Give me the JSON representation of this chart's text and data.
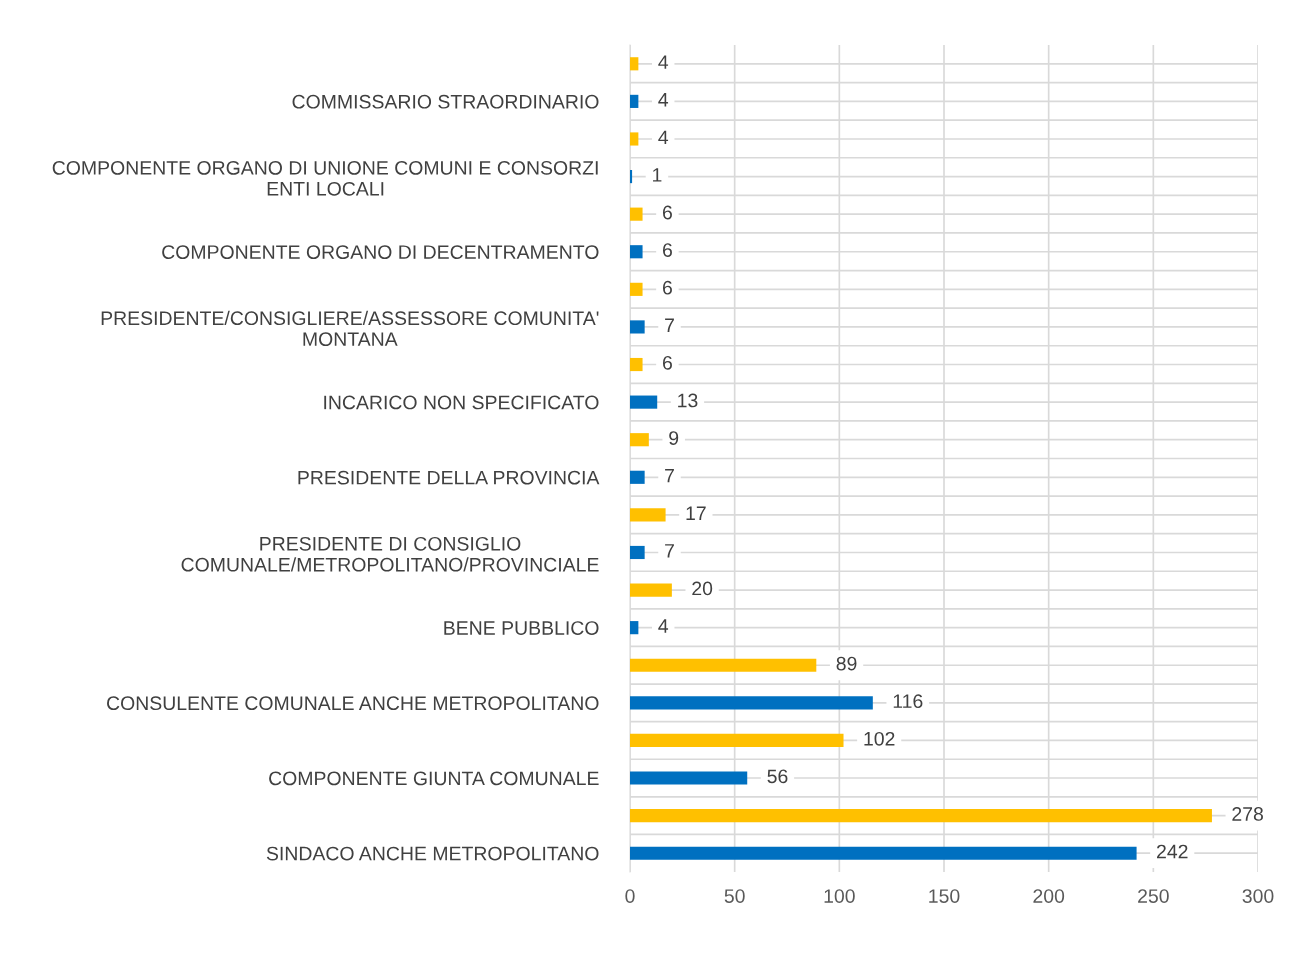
{
  "chart_data": {
    "type": "bar",
    "orientation": "horizontal",
    "categories": [
      null,
      "COMMISSARIO STRAORDINARIO",
      null,
      "COMPONENTE ORGANO DI UNIONE COMUNI E CONSORZI\nENTI LOCALI",
      null,
      "COMPONENTE ORGANO DI DECENTRAMENTO",
      null,
      "PRESIDENTE/CONSIGLIERE/ASSESSORE COMUNITA'\nMONTANA",
      null,
      "INCARICO NON SPECIFICATO",
      null,
      "PRESIDENTE DELLA PROVINCIA",
      null,
      "PRESIDENTE DI CONSIGLIO\nCOMUNALE/METROPOLITANO/PROVINCIALE",
      null,
      "BENE PUBBLICO",
      null,
      "CONSULENTE COMUNALE ANCHE METROPOLITANO",
      null,
      "COMPONENTE GIUNTA COMUNALE",
      null,
      "SINDACO ANCHE METROPOLITANO"
    ],
    "values": [
      4,
      4,
      4,
      1,
      6,
      6,
      6,
      7,
      6,
      13,
      9,
      7,
      17,
      7,
      20,
      4,
      89,
      116,
      102,
      56,
      278,
      242
    ],
    "colors": [
      "#ffc000",
      "#0070c0",
      "#ffc000",
      "#0070c0",
      "#ffc000",
      "#0070c0",
      "#ffc000",
      "#0070c0",
      "#ffc000",
      "#0070c0",
      "#ffc000",
      "#0070c0",
      "#ffc000",
      "#0070c0",
      "#ffc000",
      "#0070c0",
      "#ffc000",
      "#0070c0",
      "#ffc000",
      "#0070c0",
      "#ffc000",
      "#0070c0"
    ],
    "xlim": [
      0,
      300
    ],
    "xticks": [
      0,
      50,
      100,
      150,
      200,
      250,
      300
    ],
    "grid": true,
    "data_labels": true
  }
}
